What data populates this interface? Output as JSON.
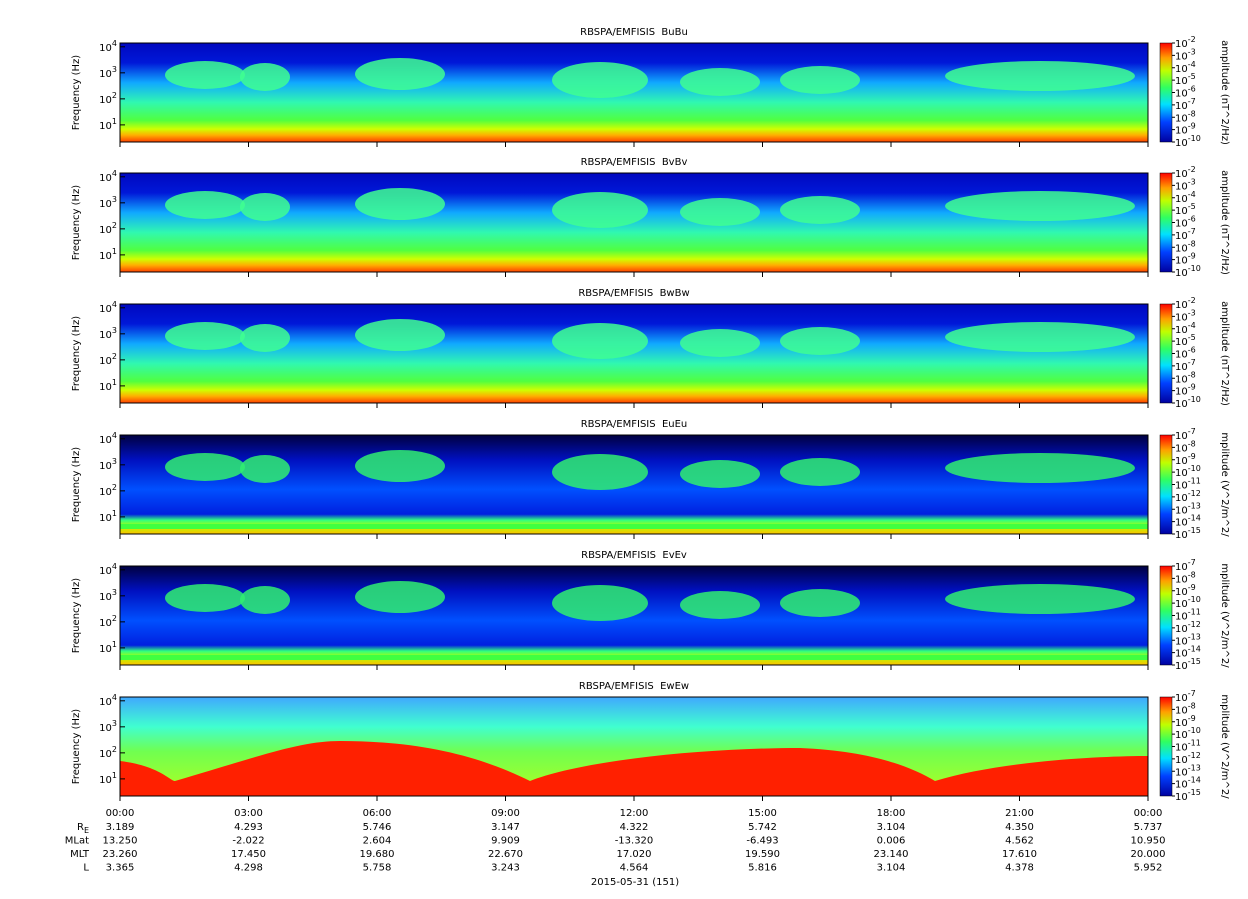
{
  "chart_data": [
    {
      "type": "spectrogram",
      "title": "RBSPA/EMFISIS  BuBu",
      "ylabel": "Frequency (Hz)",
      "ylim": [
        2.2,
        14000
      ],
      "log_y": true,
      "yticks": [
        {
          "value": 10,
          "label": "10^1"
        },
        {
          "value": 100,
          "label": "10^2"
        },
        {
          "value": 1000,
          "label": "10^3"
        },
        {
          "value": 10000,
          "label": "10^4"
        }
      ],
      "colorbar_label": "amplitude (nT^2/Hz)",
      "zlim": [
        1e-10,
        0.01
      ],
      "zticks": [
        {
          "value": 0.01,
          "label": "10^-2"
        },
        {
          "value": 0.001,
          "label": "10^-3"
        },
        {
          "value": 0.0001,
          "label": "10^-4"
        },
        {
          "value": 1e-05,
          "label": "10^-5"
        },
        {
          "value": 1e-06,
          "label": "10^-6"
        },
        {
          "value": 1e-07,
          "label": "10^-7"
        },
        {
          "value": 1e-08,
          "label": "10^-8"
        },
        {
          "value": 1e-09,
          "label": "10^-9"
        },
        {
          "value": 1e-10,
          "label": "10^-10"
        }
      ]
    },
    {
      "type": "spectrogram",
      "title": "RBSPA/EMFISIS  BvBv",
      "ylabel": "Frequency (Hz)",
      "ylim": [
        2.2,
        14000
      ],
      "log_y": true,
      "yticks": [
        {
          "value": 10,
          "label": "10^1"
        },
        {
          "value": 100,
          "label": "10^2"
        },
        {
          "value": 1000,
          "label": "10^3"
        },
        {
          "value": 10000,
          "label": "10^4"
        }
      ],
      "colorbar_label": "amplitude (nT^2/Hz)",
      "zlim": [
        1e-10,
        0.01
      ],
      "zticks": [
        {
          "value": 0.01,
          "label": "10^-2"
        },
        {
          "value": 0.001,
          "label": "10^-3"
        },
        {
          "value": 0.0001,
          "label": "10^-4"
        },
        {
          "value": 1e-05,
          "label": "10^-5"
        },
        {
          "value": 1e-06,
          "label": "10^-6"
        },
        {
          "value": 1e-07,
          "label": "10^-7"
        },
        {
          "value": 1e-08,
          "label": "10^-8"
        },
        {
          "value": 1e-09,
          "label": "10^-9"
        },
        {
          "value": 1e-10,
          "label": "10^-10"
        }
      ]
    },
    {
      "type": "spectrogram",
      "title": "RBSPA/EMFISIS  BwBw",
      "ylabel": "Frequency (Hz)",
      "ylim": [
        2.2,
        14000
      ],
      "log_y": true,
      "yticks": [
        {
          "value": 10,
          "label": "10^1"
        },
        {
          "value": 100,
          "label": "10^2"
        },
        {
          "value": 1000,
          "label": "10^3"
        },
        {
          "value": 10000,
          "label": "10^4"
        }
      ],
      "colorbar_label": "amplitude (nT^2/Hz)",
      "zlim": [
        1e-10,
        0.01
      ],
      "zticks": [
        {
          "value": 0.01,
          "label": "10^-2"
        },
        {
          "value": 0.001,
          "label": "10^-3"
        },
        {
          "value": 0.0001,
          "label": "10^-4"
        },
        {
          "value": 1e-05,
          "label": "10^-5"
        },
        {
          "value": 1e-06,
          "label": "10^-6"
        },
        {
          "value": 1e-07,
          "label": "10^-7"
        },
        {
          "value": 1e-08,
          "label": "10^-8"
        },
        {
          "value": 1e-09,
          "label": "10^-9"
        },
        {
          "value": 1e-10,
          "label": "10^-10"
        }
      ]
    },
    {
      "type": "spectrogram",
      "title": "RBSPA/EMFISIS  EuEu",
      "ylabel": "Frequency (Hz)",
      "ylim": [
        2.2,
        14000
      ],
      "log_y": true,
      "yticks": [
        {
          "value": 10,
          "label": "10^1"
        },
        {
          "value": 100,
          "label": "10^2"
        },
        {
          "value": 1000,
          "label": "10^3"
        },
        {
          "value": 10000,
          "label": "10^4"
        }
      ],
      "colorbar_label": "mplitude (V^2/m^2/",
      "zlim": [
        1e-15,
        1e-07
      ],
      "zticks": [
        {
          "value": 1e-07,
          "label": "10^-7"
        },
        {
          "value": 1e-08,
          "label": "10^-8"
        },
        {
          "value": 1e-09,
          "label": "10^-9"
        },
        {
          "value": 1e-10,
          "label": "10^-10"
        },
        {
          "value": 1e-11,
          "label": "10^-11"
        },
        {
          "value": 1e-12,
          "label": "10^-12"
        },
        {
          "value": 1e-13,
          "label": "10^-13"
        },
        {
          "value": 1e-14,
          "label": "10^-14"
        },
        {
          "value": 1e-15,
          "label": "10^-15"
        }
      ]
    },
    {
      "type": "spectrogram",
      "title": "RBSPA/EMFISIS  EvEv",
      "ylabel": "Frequency (Hz)",
      "ylim": [
        2.2,
        14000
      ],
      "log_y": true,
      "yticks": [
        {
          "value": 10,
          "label": "10^1"
        },
        {
          "value": 100,
          "label": "10^2"
        },
        {
          "value": 1000,
          "label": "10^3"
        },
        {
          "value": 10000,
          "label": "10^4"
        }
      ],
      "colorbar_label": "mplitude (V^2/m^2/",
      "zlim": [
        1e-15,
        1e-07
      ],
      "zticks": [
        {
          "value": 1e-07,
          "label": "10^-7"
        },
        {
          "value": 1e-08,
          "label": "10^-8"
        },
        {
          "value": 1e-09,
          "label": "10^-9"
        },
        {
          "value": 1e-10,
          "label": "10^-10"
        },
        {
          "value": 1e-11,
          "label": "10^-11"
        },
        {
          "value": 1e-12,
          "label": "10^-12"
        },
        {
          "value": 1e-13,
          "label": "10^-13"
        },
        {
          "value": 1e-14,
          "label": "10^-14"
        },
        {
          "value": 1e-15,
          "label": "10^-15"
        }
      ]
    },
    {
      "type": "spectrogram",
      "title": "RBSPA/EMFISIS  EwEw",
      "ylabel": "Frequency (Hz)",
      "ylim": [
        2.2,
        14000
      ],
      "log_y": true,
      "yticks": [
        {
          "value": 10,
          "label": "10^1"
        },
        {
          "value": 100,
          "label": "10^2"
        },
        {
          "value": 1000,
          "label": "10^3"
        },
        {
          "value": 10000,
          "label": "10^4"
        }
      ],
      "colorbar_label": "mplitude (V^2/m^2/",
      "zlim": [
        1e-15,
        1e-07
      ],
      "zticks": [
        {
          "value": 1e-07,
          "label": "10^-7"
        },
        {
          "value": 1e-08,
          "label": "10^-8"
        },
        {
          "value": 1e-09,
          "label": "10^-9"
        },
        {
          "value": 1e-10,
          "label": "10^-10"
        },
        {
          "value": 1e-11,
          "label": "10^-11"
        },
        {
          "value": 1e-12,
          "label": "10^-12"
        },
        {
          "value": 1e-13,
          "label": "10^-13"
        },
        {
          "value": 1e-14,
          "label": "10^-14"
        },
        {
          "value": 1e-15,
          "label": "10^-15"
        }
      ],
      "xlim": [
        0,
        24
      ],
      "xticks": [
        {
          "value": 0,
          "label": "00:00"
        },
        {
          "value": 3,
          "label": "03:00"
        },
        {
          "value": 6,
          "label": "06:00"
        },
        {
          "value": 9,
          "label": "09:00"
        },
        {
          "value": 12,
          "label": "12:00"
        },
        {
          "value": 15,
          "label": "15:00"
        },
        {
          "value": 18,
          "label": "18:00"
        },
        {
          "value": 21,
          "label": "21:00"
        },
        {
          "value": 24,
          "label": "00:00"
        }
      ],
      "ephemeris": [
        {
          "label": "R_E",
          "values": [
            "3.189",
            "4.293",
            "5.746",
            "3.147",
            "4.322",
            "5.742",
            "3.104",
            "4.350",
            "5.737"
          ]
        },
        {
          "label": "MLat",
          "values": [
            "13.250",
            "-2.022",
            "2.604",
            "9.909",
            "-13.320",
            "-6.493",
            "0.006",
            "4.562",
            "10.950"
          ]
        },
        {
          "label": "MLT",
          "values": [
            "23.260",
            "17.450",
            "19.680",
            "22.670",
            "17.020",
            "19.590",
            "23.140",
            "17.610",
            "20.000"
          ]
        },
        {
          "label": "L",
          "values": [
            "3.365",
            "4.298",
            "5.758",
            "3.243",
            "4.564",
            "5.816",
            "3.104",
            "4.378",
            "5.952"
          ]
        }
      ],
      "xlabel": "2015-05-31 (151)"
    }
  ]
}
